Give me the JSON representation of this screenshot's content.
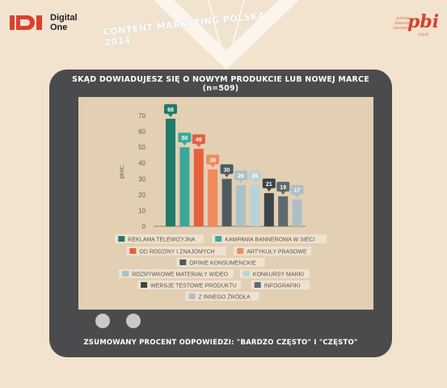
{
  "header": {
    "left_logo": {
      "line1": "Digital",
      "line2": "One"
    },
    "banner": "CONTENT MARKETING POLSKA 2014",
    "right_logo": {
      "small_lines": [
        "polskie",
        "badania",
        "internetu"
      ],
      "big": "pbi",
      "org": ".org.pl"
    }
  },
  "title_line1": "SKĄD DOWIADUJESZ SIĘ O NOWYM PRODUKCIE LUB NOWEJ MARCE",
  "title_line2": "(n=509)",
  "footnote": "ZSUMOWANY PROCENT ODPOWIEDZI: \"BARDZO CZĘSTO\" I \"CZĘSTO\"",
  "chart_data": {
    "type": "bar",
    "ylabel": "proc.",
    "ylim": [
      0,
      70
    ],
    "yticks": [
      0,
      10,
      20,
      30,
      40,
      50,
      60,
      70
    ],
    "grid": false,
    "legend_position": "bottom",
    "categories": [
      "REKLAMA TELEWIZYJNA",
      "KAMPANIA BANNEROWA W SIECI",
      "OD RODZINY I ZNAJOMYCH",
      "ARTYKUŁY PRASOWE",
      "OPINIE KONSUMENCKIE",
      "ROZRYWKOWE MATERIAŁY WIDEO",
      "KONKURSY MARKI",
      "WERSJE TESTOWE PRODUKTU",
      "INFOGRAFIKI",
      "Z INNEGO ŹRÓDŁA"
    ],
    "values": [
      68,
      50,
      49,
      36,
      30,
      26,
      26,
      21,
      19,
      17
    ],
    "colors": [
      "#1f7a6a",
      "#3aa898",
      "#e5603f",
      "#f08a5d",
      "#4f5a5e",
      "#a9c2c9",
      "#b8d3d8",
      "#3b4448",
      "#5d6a70",
      "#aebfc6"
    ]
  }
}
